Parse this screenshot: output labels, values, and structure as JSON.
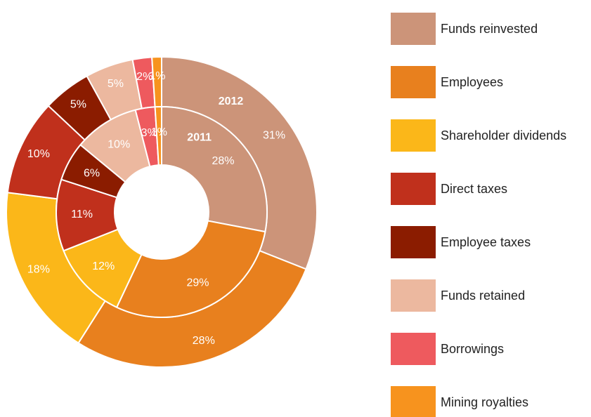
{
  "chart_data": {
    "type": "donut",
    "categories": [
      "Funds reinvested",
      "Employees",
      "Shareholder dividends",
      "Direct taxes",
      "Employee taxes",
      "Funds retained",
      "Borrowings",
      "Mining royalties"
    ],
    "colors": [
      "#cc9479",
      "#e8801e",
      "#fbb719",
      "#c0301c",
      "#8b1c00",
      "#ecb89f",
      "#ee5a5e",
      "#f7931e"
    ],
    "series": [
      {
        "name": "2012",
        "values": [
          31,
          28,
          18,
          10,
          5,
          5,
          2,
          1
        ],
        "value_labels": [
          "31%",
          "28%",
          "18%",
          "10%",
          "5%",
          "5%",
          "2%",
          "1%"
        ]
      },
      {
        "name": "2011",
        "values": [
          28,
          29,
          12,
          11,
          6,
          10,
          3,
          1
        ],
        "value_labels": [
          "28%",
          "29%",
          "12%",
          "11%",
          "6%",
          "10%",
          "3%",
          "1%"
        ]
      }
    ]
  }
}
